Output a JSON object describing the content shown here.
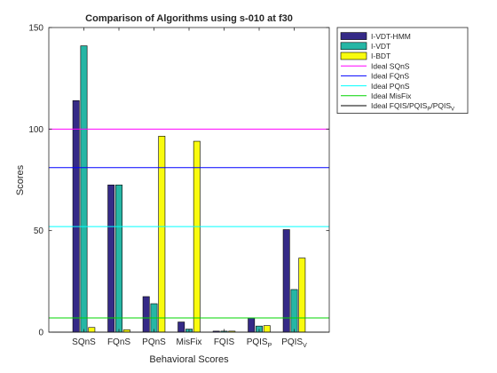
{
  "chart_data": {
    "type": "bar",
    "title": "Comparison of Algorithms using s-010 at f30",
    "xlabel": "Behavioral Scores",
    "ylabel": "Scores",
    "ylim": [
      0,
      150
    ],
    "yticks": [
      "0",
      "50",
      "100",
      "150"
    ],
    "grid": false,
    "legend_position": "outside-top-right",
    "categories": [
      {
        "name": "SQnS"
      },
      {
        "name": "FQnS"
      },
      {
        "name": "PQnS"
      },
      {
        "name": "MisFix"
      },
      {
        "name": "FQIS"
      },
      {
        "name": "PQIS",
        "subscript": "P"
      },
      {
        "name": "PQIS",
        "subscript": "V"
      }
    ],
    "series": [
      {
        "name": "I-VDT-HMM",
        "color": "#352a87",
        "values": [
          114,
          72.5,
          17.5,
          5,
          0.5,
          7,
          50.5
        ]
      },
      {
        "name": "I-VDT",
        "color": "#26b6a5",
        "values": [
          141,
          72.5,
          14,
          1.5,
          0.5,
          3,
          21
        ]
      },
      {
        "name": "I-BDT",
        "color": "#f9fb0e",
        "values": [
          2.3,
          1.2,
          96.5,
          94,
          0.5,
          3.2,
          36.5
        ]
      }
    ],
    "reference_lines": [
      {
        "name": "Ideal SQnS",
        "value": 100,
        "color": "#ff00ff"
      },
      {
        "name": "Ideal FQnS",
        "value": 81,
        "color": "#0000ff"
      },
      {
        "name": "Ideal PQnS",
        "value": 52,
        "color": "#00ffff"
      },
      {
        "name": "Ideal MisFix",
        "value": 7,
        "color": "#00d400"
      },
      {
        "name": "Ideal FQIS/PQIS_P/PQIS_V",
        "value": 0,
        "color": "#000000"
      }
    ]
  }
}
